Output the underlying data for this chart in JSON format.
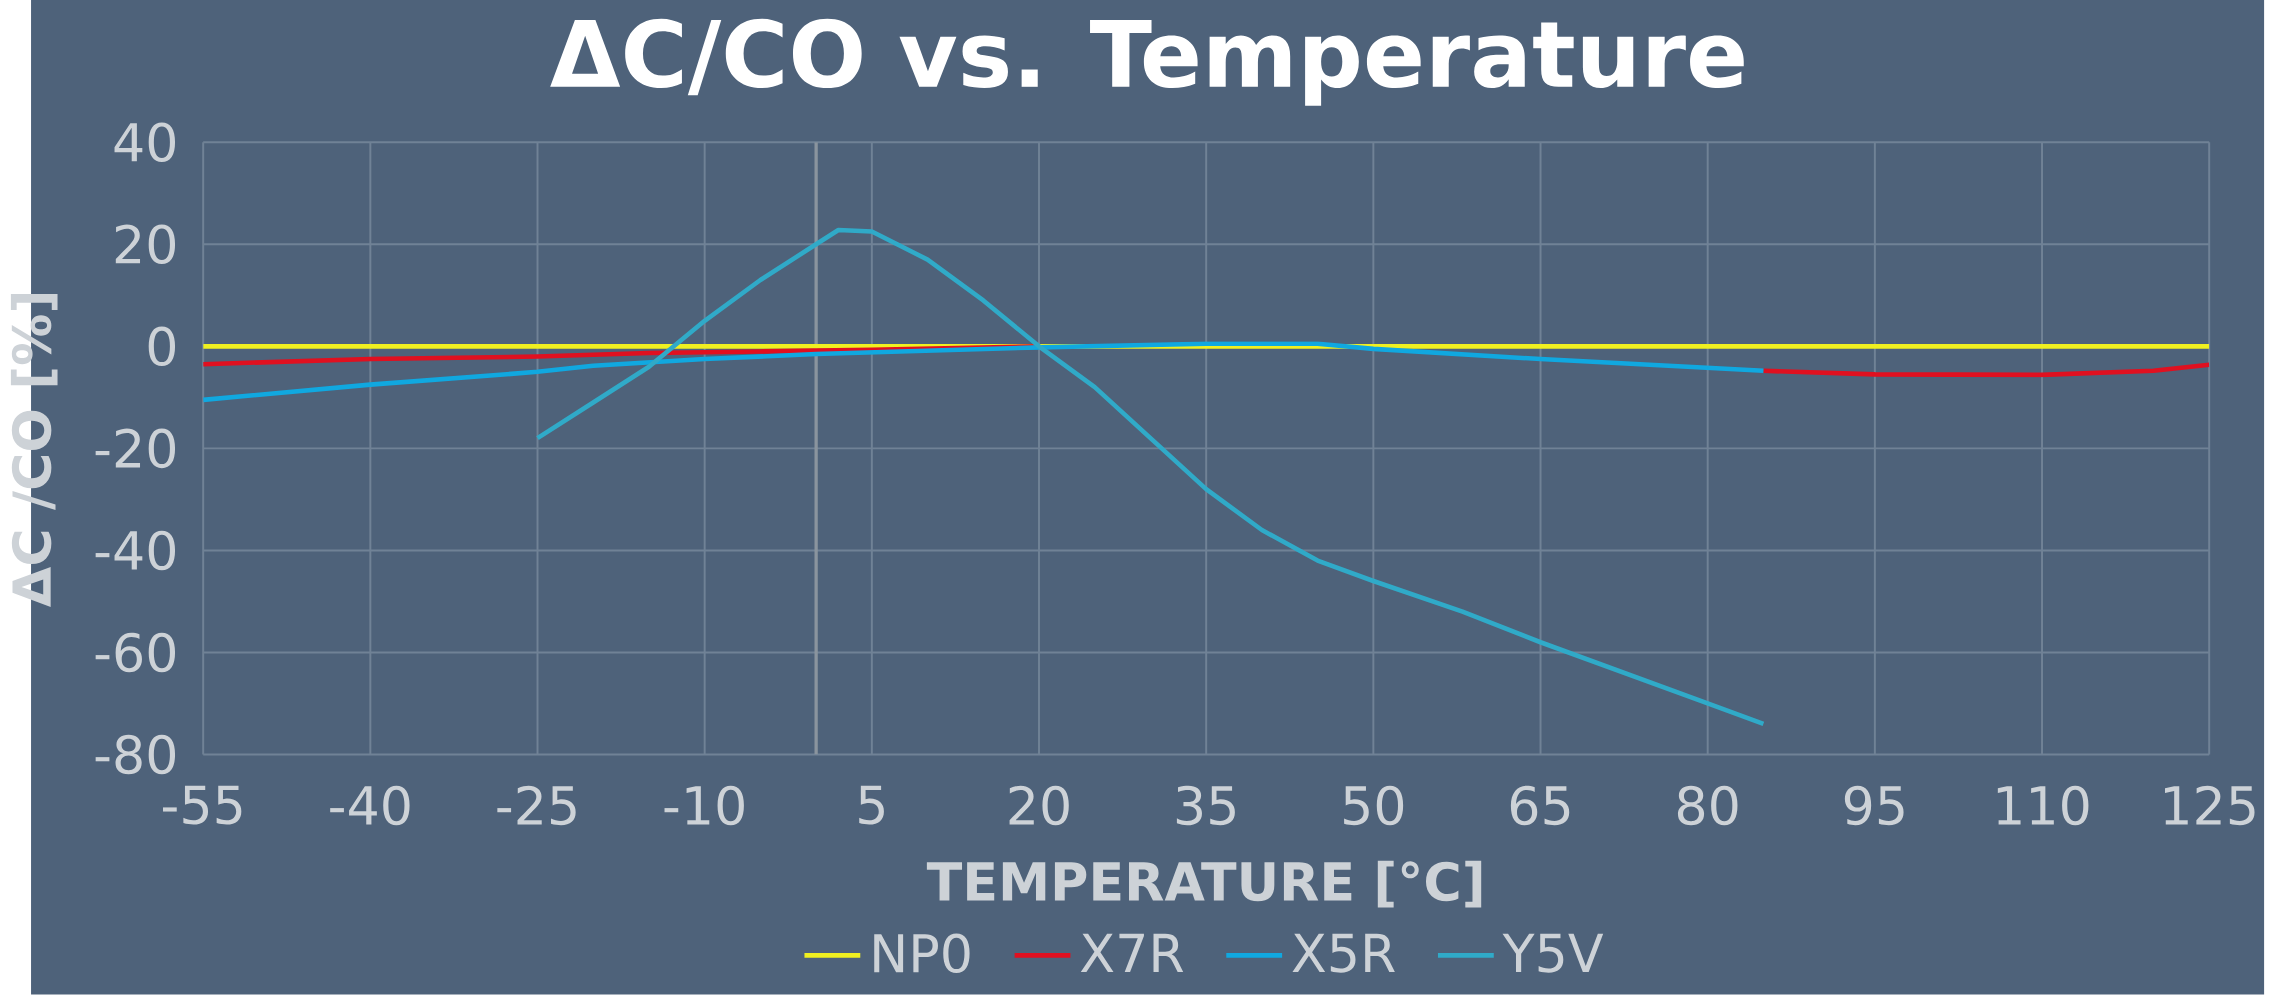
{
  "chart_data": {
    "type": "line",
    "title": "ΔC/CO vs. Temperature",
    "xlabel": "TEMPERATURE [°C]",
    "ylabel": "ΔC /CO [%]",
    "xlim": [
      -55,
      125
    ],
    "xticks": [
      -55,
      -40,
      -25,
      -10,
      5,
      20,
      35,
      50,
      65,
      80,
      95,
      110,
      125
    ],
    "ylim": [
      -80,
      40
    ],
    "yticks": [
      -80,
      -60,
      -40,
      -20,
      0,
      20,
      40
    ],
    "grid": true,
    "legend": "bottom",
    "ref_lines": [
      {
        "axis": "x",
        "value": 0,
        "color": "#8a949e"
      }
    ],
    "series": [
      {
        "name": "NP0",
        "color": "#f0f020",
        "x": [
          -55,
          125
        ],
        "values": [
          0,
          0
        ]
      },
      {
        "name": "X7R",
        "color": "#e01020",
        "x": [
          -55,
          -40,
          -25,
          -15,
          -5,
          5,
          20,
          35,
          45,
          50,
          65,
          85,
          95,
          110,
          120,
          125
        ],
        "values": [
          -3.5,
          -2.5,
          -2,
          -1.3,
          -1,
          -0.7,
          0,
          null,
          null,
          null,
          null,
          -4.8,
          -5.5,
          -5.6,
          -4.8,
          -3.6
        ]
      },
      {
        "name": "X5R",
        "color": "#10a8e0",
        "x": [
          -55,
          -40,
          -25,
          -20,
          -10,
          0,
          20,
          35,
          45,
          50,
          65,
          85
        ],
        "values": [
          -10.5,
          -7.5,
          -5,
          -3.8,
          -2.5,
          -1.5,
          -0.2,
          0.5,
          0.5,
          -0.5,
          -2.5,
          -4.8
        ]
      },
      {
        "name": "Y5V",
        "color": "#30aac8",
        "x": [
          -25,
          -20,
          -15,
          -10,
          -5,
          0,
          2,
          5,
          10,
          15,
          20,
          25,
          30,
          35,
          40,
          45,
          50,
          58,
          65,
          80,
          85
        ],
        "values": [
          -18,
          -11,
          -4,
          5,
          13,
          20,
          22.8,
          22.5,
          17,
          9,
          0,
          -8,
          -18,
          -28,
          -36,
          -42,
          -46,
          -52,
          -58,
          -70,
          -74
        ]
      }
    ]
  }
}
